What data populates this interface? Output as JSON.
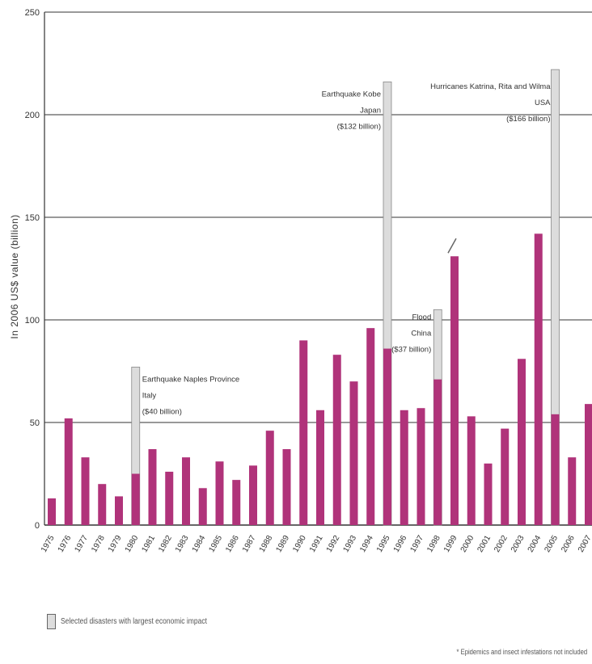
{
  "chart_data": {
    "type": "bar",
    "ylabel": "In 2006 US$ value (billion)",
    "ylim": [
      0,
      250
    ],
    "yticks": [
      0,
      50,
      100,
      150,
      200,
      250
    ],
    "grid": true,
    "categories": [
      "1975",
      "1976",
      "1977",
      "1978",
      "1979",
      "1980",
      "1981",
      "1982",
      "1983",
      "1984",
      "1985",
      "1986",
      "1987",
      "1988",
      "1989",
      "1990",
      "1991",
      "1992",
      "1993",
      "1994",
      "1995",
      "1996",
      "1997",
      "1998",
      "1999",
      "2000",
      "2001",
      "2002",
      "2003",
      "2004",
      "2005",
      "2006",
      "2007"
    ],
    "series": [
      {
        "values": [
          13,
          52,
          33,
          20,
          14,
          25,
          37,
          26,
          33,
          18,
          31,
          22,
          29,
          46,
          37,
          90,
          56,
          83,
          70,
          96,
          86,
          56,
          57,
          71,
          131,
          53,
          30,
          47,
          81,
          142,
          54,
          33,
          59
        ]
      }
    ],
    "highlighted": [
      {
        "year": "1980",
        "top": 77,
        "lines": [
          "Earthquake Naples Province",
          "Italy",
          "($40 billion)"
        ]
      },
      {
        "year": "1995",
        "top": 216,
        "lines": [
          "Earthquake Kobe",
          "Japan",
          "($132 billion)"
        ]
      },
      {
        "year": "1998",
        "top": 105,
        "lines": [
          "Flood",
          "China",
          "($37 billion)"
        ]
      },
      {
        "year": "2005",
        "top": 222,
        "lines": [
          "Hurricanes Katrina, Rita and Wilma",
          "USA",
          "($166 billion)"
        ]
      }
    ],
    "colors": {
      "bar": "#b0337a",
      "highlight": "#dcdcdc",
      "grid": "#333333"
    }
  },
  "legend": {
    "label": "Selected disasters with largest economic impact"
  },
  "footnote": "* Epidemics and insect infestations not included"
}
